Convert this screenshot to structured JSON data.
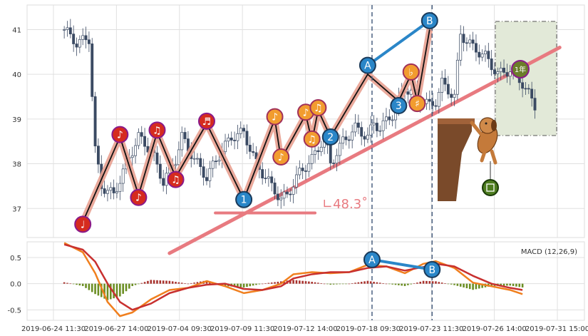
{
  "chart_data": [
    {
      "type": "candlestick",
      "ylim": [
        36.35,
        41.55
      ],
      "y_ticks": [
        "37",
        "38",
        "39",
        "40",
        "41"
      ],
      "x_ticks": [
        "2019-06-24 11:30",
        "2019-06-27 14:00",
        "2019-07-04 09:30",
        "2019-07-09 11:30",
        "2019-07-12 14:00",
        "2019-07-18 09:30",
        "2019-07-23 11:30",
        "2019-07-26 14:00",
        "2019-07-31 15:00"
      ],
      "grid": true,
      "close_trace": [
        [
          0,
          41.0
        ],
        [
          2,
          40.7
        ],
        [
          4,
          40.8
        ],
        [
          5,
          38.3
        ],
        [
          6,
          37.5
        ],
        [
          8,
          37.3
        ],
        [
          10,
          38.0
        ],
        [
          12,
          38.6
        ],
        [
          14,
          38.3
        ],
        [
          16,
          37.6
        ],
        [
          18,
          38.1
        ],
        [
          19,
          38.6
        ],
        [
          21,
          38.1
        ],
        [
          23,
          37.7
        ],
        [
          25,
          38.2
        ],
        [
          27,
          38.6
        ],
        [
          29,
          38.7
        ],
        [
          31,
          38.0
        ],
        [
          33,
          37.6
        ],
        [
          35,
          37.2
        ],
        [
          36,
          37.3
        ],
        [
          38,
          37.8
        ],
        [
          40,
          38.1
        ],
        [
          42,
          38.6
        ],
        [
          43,
          38.0
        ],
        [
          45,
          38.5
        ],
        [
          47,
          38.8
        ],
        [
          49,
          38.6
        ],
        [
          50,
          38.9
        ],
        [
          51,
          38.8
        ],
        [
          53,
          39.1
        ],
        [
          55,
          39.7
        ],
        [
          57,
          39.5
        ],
        [
          59,
          39.3
        ],
        [
          60,
          39.4
        ],
        [
          61,
          39.8
        ],
        [
          63,
          39.5
        ],
        [
          64,
          40.9
        ],
        [
          66,
          40.6
        ],
        [
          68,
          40.4
        ],
        [
          70,
          40.0
        ],
        [
          72,
          40.1
        ],
        [
          74,
          39.8
        ],
        [
          76,
          39.3
        ]
      ],
      "wave_points": [
        {
          "x": 3,
          "y": 36.7,
          "label": "♩",
          "color": "#d52b1e"
        },
        {
          "x": 9,
          "y": 38.6,
          "label": "♪",
          "color": "#d52b1e"
        },
        {
          "x": 12,
          "y": 37.3,
          "label": "♪",
          "color": "#d52b1e"
        },
        {
          "x": 15,
          "y": 38.7,
          "label": "♫",
          "color": "#d52b1e"
        },
        {
          "x": 18,
          "y": 37.7,
          "label": "♫",
          "color": "#d52b1e"
        },
        {
          "x": 23,
          "y": 38.9,
          "label": "♬",
          "color": "#d52b1e"
        },
        {
          "x": 29,
          "y": 37.2,
          "label": "",
          "color": null
        },
        {
          "x": 34,
          "y": 39.0,
          "label": "♪",
          "color": "#f29c2f"
        },
        {
          "x": 35,
          "y": 38.1,
          "label": "♪",
          "color": "#f29c2f"
        },
        {
          "x": 39,
          "y": 39.1,
          "label": "♪",
          "color": "#f29c2f"
        },
        {
          "x": 40,
          "y": 38.5,
          "label": "♫",
          "color": "#f29c2f"
        },
        {
          "x": 41,
          "y": 39.2,
          "label": "♫",
          "color": "#f29c2f"
        },
        {
          "x": 43,
          "y": 38.6,
          "label": "",
          "color": null
        },
        {
          "x": 49,
          "y": 40.0,
          "label": "",
          "color": null
        },
        {
          "x": 54,
          "y": 39.4,
          "label": "",
          "color": null
        },
        {
          "x": 56,
          "y": 40.0,
          "label": "♭",
          "color": "#f29c2f"
        },
        {
          "x": 57,
          "y": 39.4,
          "label": "♯",
          "color": "#f29c2f"
        },
        {
          "x": 59,
          "y": 41.0,
          "label": "",
          "color": null
        }
      ],
      "elliott_points": [
        {
          "x": 29,
          "y": 37.2,
          "label": "1"
        },
        {
          "x": 43,
          "y": 38.6,
          "label": "2"
        },
        {
          "x": 54,
          "y": 39.3,
          "label": "3"
        },
        {
          "x": 49,
          "y": 40.2,
          "label": "A"
        },
        {
          "x": 59,
          "y": 41.2,
          "label": "B"
        }
      ],
      "trend_line": {
        "from": {
          "x": 17,
          "y": 36.0
        },
        "to": {
          "x": 80,
          "y": 40.6
        }
      },
      "angle_label": "∟48.3˚",
      "vertical_markers": [
        {
          "x": 49.7,
          "label": "A"
        },
        {
          "x": 59.4,
          "label": "B"
        }
      ],
      "right_box_label": "1年"
    },
    {
      "type": "macd",
      "title": "MACD (12,26,9)",
      "ylim": [
        -0.7,
        0.8
      ],
      "y_ticks": [
        "0.5",
        "0.0",
        "-0.5"
      ],
      "macd_line": [
        [
          0,
          0.78
        ],
        [
          3,
          0.6
        ],
        [
          5,
          0.2
        ],
        [
          7,
          -0.35
        ],
        [
          9,
          -0.62
        ],
        [
          11,
          -0.55
        ],
        [
          14,
          -0.3
        ],
        [
          17,
          -0.12
        ],
        [
          20,
          -0.08
        ],
        [
          23,
          0.05
        ],
        [
          26,
          -0.05
        ],
        [
          29,
          -0.18
        ],
        [
          32,
          -0.12
        ],
        [
          35,
          0.0
        ],
        [
          37,
          0.18
        ],
        [
          40,
          0.22
        ],
        [
          43,
          0.2
        ],
        [
          46,
          0.22
        ],
        [
          49,
          0.36
        ],
        [
          52,
          0.33
        ],
        [
          55,
          0.2
        ],
        [
          58,
          0.38
        ],
        [
          60,
          0.43
        ],
        [
          63,
          0.3
        ],
        [
          66,
          0.02
        ],
        [
          69,
          -0.05
        ],
        [
          72,
          -0.12
        ],
        [
          74,
          -0.2
        ]
      ],
      "signal_line": [
        [
          0,
          0.75
        ],
        [
          3,
          0.65
        ],
        [
          5,
          0.42
        ],
        [
          7,
          0.0
        ],
        [
          9,
          -0.35
        ],
        [
          11,
          -0.5
        ],
        [
          14,
          -0.38
        ],
        [
          17,
          -0.18
        ],
        [
          20,
          -0.08
        ],
        [
          23,
          -0.02
        ],
        [
          26,
          0.0
        ],
        [
          29,
          -0.1
        ],
        [
          32,
          -0.12
        ],
        [
          35,
          -0.05
        ],
        [
          37,
          0.1
        ],
        [
          40,
          0.18
        ],
        [
          43,
          0.22
        ],
        [
          46,
          0.22
        ],
        [
          49,
          0.3
        ],
        [
          52,
          0.33
        ],
        [
          55,
          0.25
        ],
        [
          58,
          0.32
        ],
        [
          60,
          0.38
        ],
        [
          63,
          0.33
        ],
        [
          66,
          0.15
        ],
        [
          69,
          0.0
        ],
        [
          72,
          -0.08
        ],
        [
          74,
          -0.12
        ]
      ],
      "elliott_points": [
        {
          "x": 49.7,
          "y": 0.46,
          "label": "A"
        },
        {
          "x": 59.4,
          "y": 0.27,
          "label": "B"
        }
      ]
    }
  ]
}
